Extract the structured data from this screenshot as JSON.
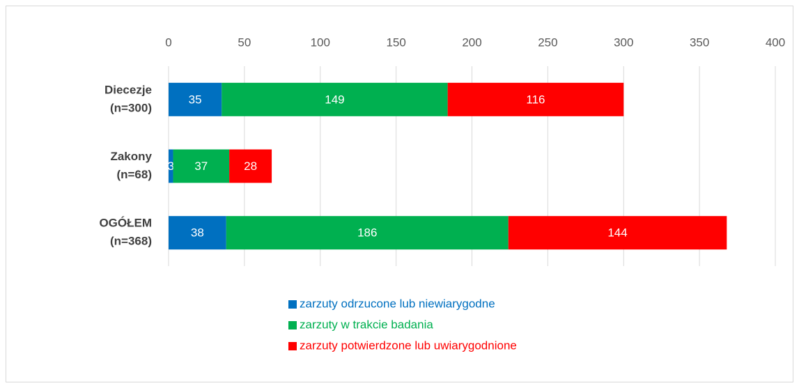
{
  "chart_data": {
    "type": "bar",
    "orientation": "horizontal",
    "stacked": true,
    "categories": [
      [
        "Diecezje",
        "(n=300)"
      ],
      [
        "Zakony",
        "(n=68)"
      ],
      [
        "OGÓŁEM",
        "(n=368)"
      ]
    ],
    "series": [
      {
        "name": "zarzuty odrzucone lub niewiarygodne",
        "color": "#0070c0",
        "values": [
          35,
          3,
          38
        ]
      },
      {
        "name": "zarzuty w trakcie badania",
        "color": "#00b050",
        "values": [
          149,
          37,
          186
        ]
      },
      {
        "name": "zarzuty potwierdzone lub uwiarygodnione",
        "color": "#ff0000",
        "values": [
          116,
          28,
          144
        ]
      }
    ],
    "xlim": [
      0,
      400
    ],
    "xticks": [
      0,
      50,
      100,
      150,
      200,
      250,
      300,
      350,
      400
    ],
    "grid": true,
    "legend": "bottom"
  }
}
